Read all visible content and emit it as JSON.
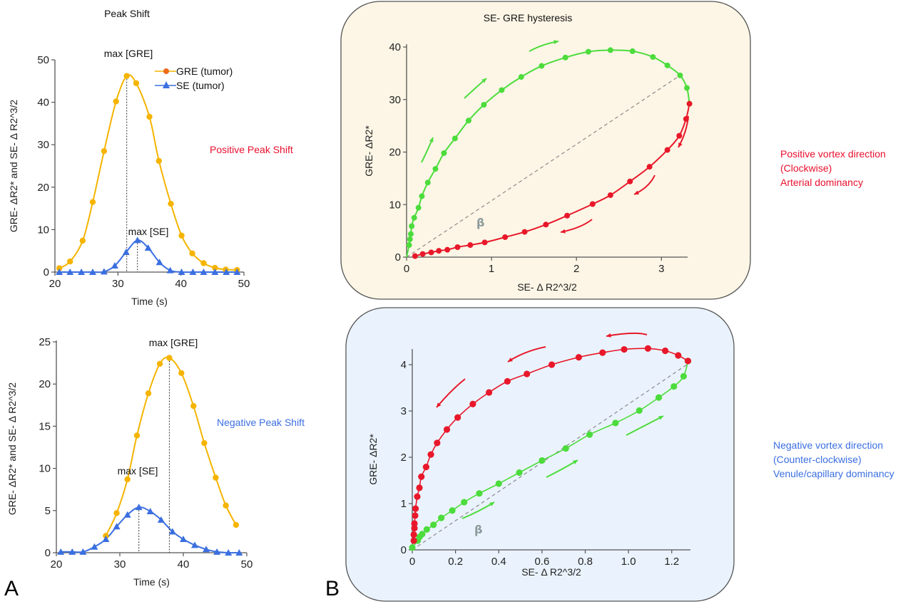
{
  "figure": {
    "panel_letters": {
      "a": "A",
      "b": "B"
    },
    "colors": {
      "gre": "#f5b400",
      "gre_marker_highlight": "#f06a1a",
      "se": "#3b6fe0",
      "green": "#4cdc3c",
      "red": "#e8182a",
      "positive_text": "#e8102e",
      "negative_text": "#3b6fe0",
      "panel_top_bg": "#fdf6e6",
      "panel_bottom_bg": "#eaf3fd",
      "beta": "#8a9a9a"
    }
  },
  "chart_data": [
    {
      "id": "peak_shift_positive",
      "type": "line",
      "title": "Peak Shift",
      "xlabel": "Time (s)",
      "ylabel": "GRE- ΔR2* and SE- Δ R2^3/2",
      "xlim": [
        20,
        50
      ],
      "ylim": [
        0,
        50
      ],
      "xticks": [
        20,
        30,
        40,
        50
      ],
      "yticks": [
        0,
        10,
        20,
        30,
        40,
        50
      ],
      "grid": false,
      "legend": {
        "position": "top-right",
        "entries": [
          "GRE (tumor)",
          "SE (tumor)"
        ]
      },
      "annotations": [
        {
          "text": "max [GRE]",
          "x": 31.4
        },
        {
          "text": "max [SE]",
          "x": 33.1
        }
      ],
      "side_label": "Positive Peak Shift",
      "series": [
        {
          "name": "GRE (tumor)",
          "marker": "circle",
          "x": [
            20.7,
            22.4,
            24.4,
            26.0,
            27.8,
            29.7,
            31.4,
            32.9,
            35.0,
            36.5,
            38.4,
            40.1,
            41.8,
            43.6,
            45.4,
            47.1,
            48.9
          ],
          "y": [
            0.9,
            2.5,
            7.4,
            16.5,
            28.5,
            40.2,
            46.2,
            44.5,
            36.6,
            26.2,
            16.1,
            8.6,
            4.4,
            2.1,
            1.0,
            0.6,
            0.5
          ]
        },
        {
          "name": "SE (tumor)",
          "marker": "triangle",
          "x": [
            20.7,
            22.4,
            24.2,
            26.0,
            27.8,
            29.5,
            31.3,
            33.1,
            34.8,
            36.6,
            38.3,
            40.1,
            41.9,
            43.6,
            45.4,
            47.2,
            48.9
          ],
          "y": [
            0,
            0,
            0,
            0,
            0.1,
            1.5,
            4.7,
            7.5,
            5.7,
            2.3,
            0.4,
            0,
            0,
            0,
            0,
            0,
            0
          ]
        }
      ]
    },
    {
      "id": "peak_shift_negative",
      "type": "line",
      "title": "",
      "xlabel": "Time (s)",
      "ylabel": "GRE- ΔR2* and SE- Δ R2^3/2",
      "xlim": [
        20,
        50
      ],
      "ylim": [
        0,
        25
      ],
      "xticks": [
        20,
        30,
        40,
        50
      ],
      "yticks": [
        0,
        5,
        10,
        15,
        20,
        25
      ],
      "grid": false,
      "annotations": [
        {
          "text": "max [GRE]",
          "x": 38.3
        },
        {
          "text": "max [SE]",
          "x": 33.1
        }
      ],
      "side_label": "Negative Peak Shift",
      "series": [
        {
          "name": "GRE (tumor)",
          "marker": "circle",
          "x": [
            27.8,
            29.5,
            31.2,
            32.7,
            34.5,
            36.3,
            37.8,
            39.7,
            41.6,
            43.3,
            45.1,
            46.7,
            48.3
          ],
          "y": [
            2.0,
            4.7,
            8.7,
            13.9,
            18.9,
            22.4,
            23.1,
            21.3,
            17.4,
            13.0,
            8.9,
            5.6,
            3.3
          ]
        },
        {
          "name": "SE (tumor)",
          "marker": "triangle",
          "x": [
            20.7,
            22.5,
            24.2,
            26.0,
            27.8,
            29.5,
            31.2,
            33.0,
            34.8,
            36.5,
            38.3,
            40.0,
            41.8,
            43.6,
            45.3,
            47.1,
            48.8
          ],
          "y": [
            0.1,
            0.1,
            0.1,
            0.7,
            1.6,
            3.1,
            4.5,
            5.4,
            4.9,
            3.9,
            2.5,
            1.6,
            0.9,
            0.4,
            0.1,
            0,
            0
          ]
        }
      ]
    },
    {
      "id": "hysteresis_positive",
      "type": "scatter",
      "title": "SE- GRE hysteresis",
      "xlabel": "SE- Δ R2^3/2",
      "ylabel": "GRE- ΔR2*",
      "xlim": [
        0,
        3.3
      ],
      "ylim": [
        0,
        40
      ],
      "xticks": [
        0,
        1,
        2,
        3
      ],
      "yticks": [
        0,
        10,
        20,
        30,
        40
      ],
      "grid": false,
      "beta_label": "β",
      "reference_line": {
        "from": [
          0,
          0
        ],
        "to": [
          3.22,
          34.6
        ]
      },
      "side_label": [
        "Positive vortex direction",
        "(Clockwise)",
        "Arterial dominancy"
      ],
      "series": [
        {
          "name": "upslope",
          "color_key": "green",
          "x": [
            0.0,
            0.03,
            0.04,
            0.05,
            0.06,
            0.09,
            0.14,
            0.18,
            0.25,
            0.34,
            0.44,
            0.57,
            0.73,
            0.91,
            1.12,
            1.35,
            1.59,
            1.87,
            2.14,
            2.4,
            2.66,
            2.9,
            3.07,
            3.22,
            3.3,
            3.33
          ],
          "y": [
            0.0,
            2.3,
            3.4,
            4.4,
            5.9,
            7.5,
            9.4,
            11.6,
            14.2,
            16.8,
            19.8,
            22.6,
            26.0,
            29.0,
            31.8,
            34.3,
            36.4,
            38.0,
            39.1,
            39.4,
            39.2,
            38.1,
            36.5,
            34.6,
            32.2,
            29.2
          ]
        },
        {
          "name": "downslope",
          "color_key": "red",
          "x": [
            3.33,
            3.29,
            3.21,
            3.07,
            2.86,
            2.63,
            2.4,
            2.19,
            1.89,
            1.64,
            1.39,
            1.16,
            0.92,
            0.75,
            0.6,
            0.48,
            0.38,
            0.29,
            0.19,
            0.1
          ],
          "y": [
            29.2,
            26.3,
            23.1,
            20.4,
            17.2,
            14.4,
            11.8,
            10.1,
            7.9,
            6.2,
            4.8,
            3.8,
            2.8,
            2.3,
            1.9,
            1.4,
            1.2,
            0.9,
            0.6,
            0.2
          ]
        }
      ],
      "direction_arrows": "clockwise"
    },
    {
      "id": "hysteresis_negative",
      "type": "scatter",
      "title": "",
      "xlabel": "SE- Δ R2^3/2",
      "ylabel": "GRE- ΔR2*",
      "xlim": [
        0,
        1.28
      ],
      "ylim": [
        0,
        4.3
      ],
      "xticks": [
        0,
        0.2,
        0.4,
        0.6,
        0.8,
        1.0,
        1.2
      ],
      "xtick_labels": [
        "0",
        "0.2",
        "0.4",
        "0.6",
        "0.8",
        "1.0",
        "1.2"
      ],
      "yticks": [
        0,
        1,
        2,
        3,
        4
      ],
      "grid": false,
      "beta_label": "β",
      "reference_line": {
        "from": [
          0,
          0
        ],
        "to": [
          1.27,
          4.0
        ]
      },
      "side_label": [
        "Negative vortex direction",
        "(Counter-clockwise)",
        "Venule/capillary dominancy"
      ],
      "series": [
        {
          "name": "upslope",
          "color_key": "green",
          "x": [
            0.0,
            0.025,
            0.034,
            0.046,
            0.067,
            0.098,
            0.134,
            0.185,
            0.24,
            0.31,
            0.4,
            0.495,
            0.6,
            0.71,
            0.82,
            0.94,
            1.05,
            1.14,
            1.21,
            1.255,
            1.275
          ],
          "y": [
            0.05,
            0.2,
            0.28,
            0.34,
            0.44,
            0.54,
            0.69,
            0.85,
            1.03,
            1.22,
            1.43,
            1.67,
            1.93,
            2.19,
            2.49,
            2.74,
            3.01,
            3.29,
            3.53,
            3.75,
            4.08
          ]
        },
        {
          "name": "downslope",
          "color_key": "red",
          "x": [
            1.275,
            1.23,
            1.17,
            1.09,
            0.98,
            0.88,
            0.77,
            0.645,
            0.53,
            0.44,
            0.355,
            0.28,
            0.21,
            0.16,
            0.115,
            0.086,
            0.064,
            0.042,
            0.033,
            0.023,
            0.015,
            0.013,
            0.01,
            0.01,
            0.007,
            0.007
          ],
          "y": [
            4.08,
            4.2,
            4.3,
            4.35,
            4.33,
            4.26,
            4.16,
            4.0,
            3.8,
            3.64,
            3.4,
            3.15,
            2.86,
            2.6,
            2.31,
            2.06,
            1.79,
            1.58,
            1.34,
            1.15,
            0.89,
            0.74,
            0.57,
            0.47,
            0.33,
            0.2
          ]
        }
      ],
      "direction_arrows": "counter-clockwise"
    }
  ]
}
